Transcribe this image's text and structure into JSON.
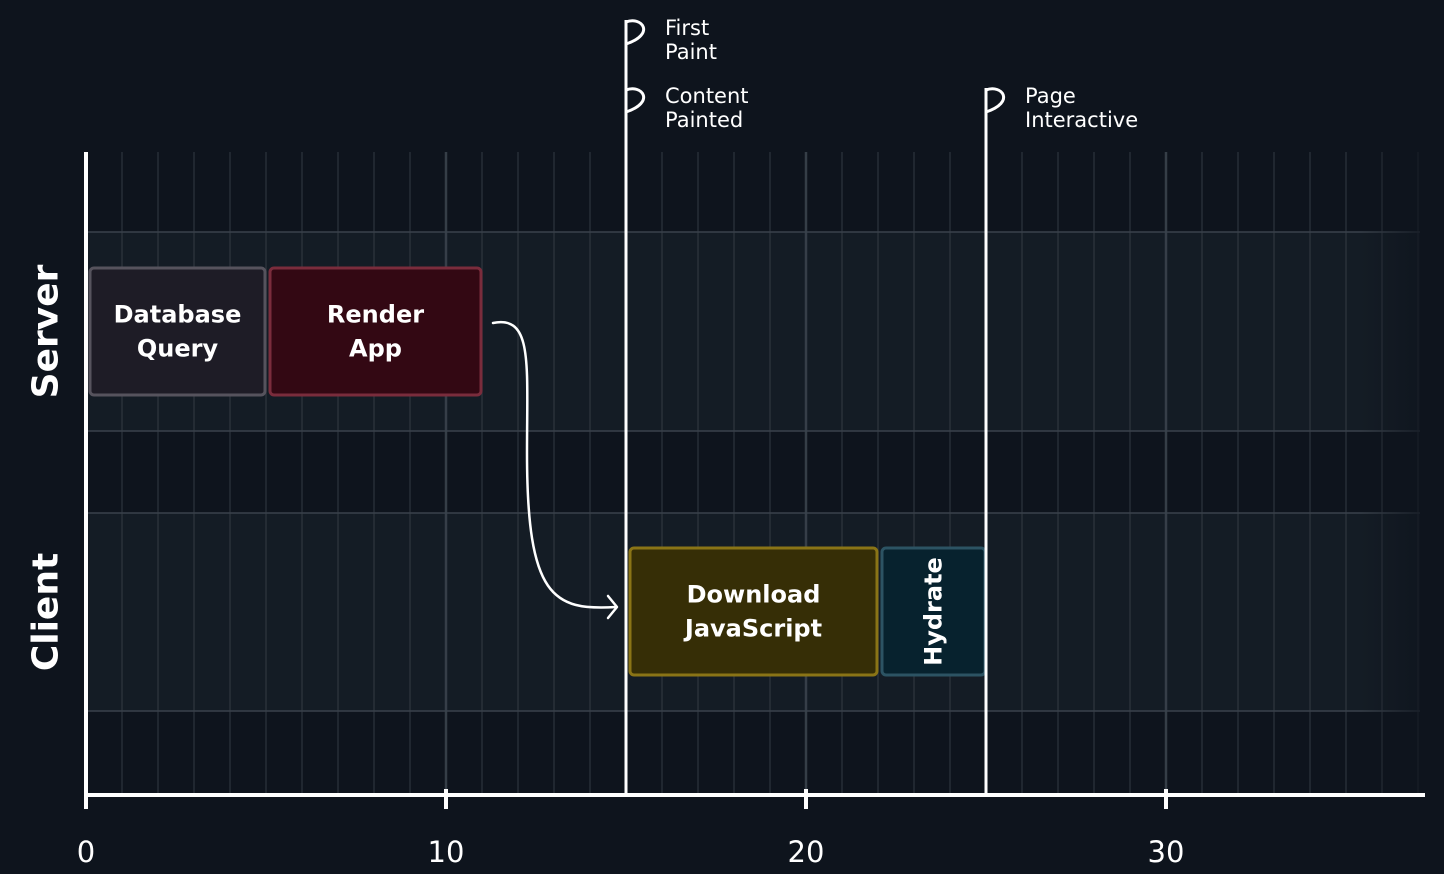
{
  "axis": {
    "min": 0,
    "max": 37,
    "minor_step": 1,
    "major_step": 10,
    "tick_labels": [
      "0",
      "10",
      "20",
      "30"
    ]
  },
  "lanes": [
    {
      "id": "server",
      "label": "Server"
    },
    {
      "id": "client",
      "label": "Client"
    }
  ],
  "tasks": [
    {
      "id": "database-query",
      "lane": "server",
      "start": 0,
      "end": 5,
      "lines": [
        "Database",
        "Query"
      ],
      "fill": "#1e1c26",
      "stroke": "#56535d",
      "vertical": false
    },
    {
      "id": "render-app",
      "lane": "server",
      "start": 5,
      "end": 11,
      "lines": [
        "Render",
        "App"
      ],
      "fill": "#330813",
      "stroke": "#7a2c3c",
      "vertical": false
    },
    {
      "id": "download-javascript",
      "lane": "client",
      "start": 15,
      "end": 22,
      "lines": [
        "Download",
        "JavaScript"
      ],
      "fill": "#362e06",
      "stroke": "#8a7416",
      "vertical": false
    },
    {
      "id": "hydrate",
      "lane": "client",
      "start": 22,
      "end": 25,
      "lines": [
        "Hydrate"
      ],
      "fill": "#07222e",
      "stroke": "#2c5363",
      "vertical": true
    }
  ],
  "markers": [
    {
      "id": "first-paint",
      "at": 15,
      "lines": [
        "First",
        "Paint"
      ]
    },
    {
      "id": "content-painted",
      "at": 15,
      "lines": [
        "Content",
        "Painted"
      ]
    },
    {
      "id": "page-interactive",
      "at": 25,
      "lines": [
        "Page",
        "Interactive"
      ]
    }
  ],
  "connector": {
    "from": "render-app",
    "to": "download-javascript"
  },
  "colors": {
    "background": "#0e141d",
    "lane_band": "#141c25",
    "grid": "#3a424c",
    "axis": "#ffffff",
    "text": "#ffffff"
  }
}
